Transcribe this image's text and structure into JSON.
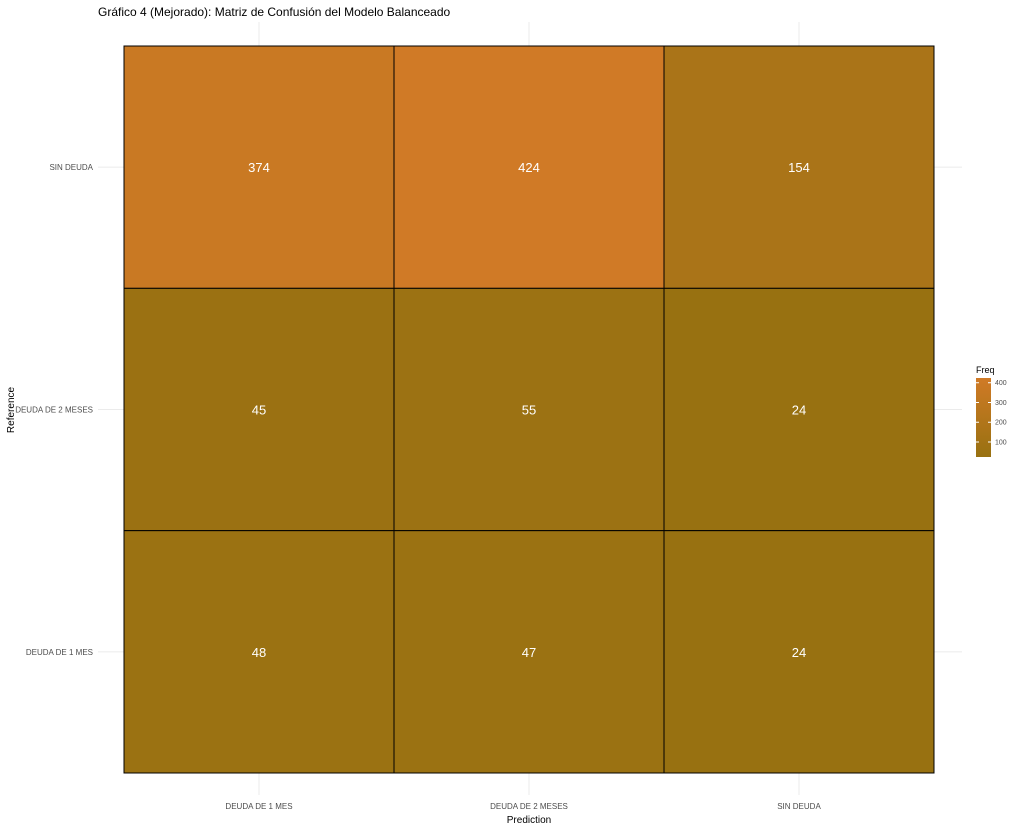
{
  "chart_data": {
    "type": "heatmap",
    "title": "Gráfico 4 (Mejorado): Matriz de Confusión del Modelo Balanceado",
    "xlabel": "Prediction",
    "ylabel": "Reference",
    "x_categories": [
      "DEUDA DE 1 MES",
      "DEUDA DE 2 MESES",
      "SIN DEUDA"
    ],
    "y_categories": [
      "DEUDA DE 1 MES",
      "DEUDA DE 2 MESES",
      "SIN DEUDA"
    ],
    "cells": [
      {
        "prediction": "DEUDA DE 1 MES",
        "reference": "SIN DEUDA",
        "freq": 374
      },
      {
        "prediction": "DEUDA DE 2 MESES",
        "reference": "SIN DEUDA",
        "freq": 424
      },
      {
        "prediction": "SIN DEUDA",
        "reference": "SIN DEUDA",
        "freq": 154
      },
      {
        "prediction": "DEUDA DE 1 MES",
        "reference": "DEUDA DE 2 MESES",
        "freq": 45
      },
      {
        "prediction": "DEUDA DE 2 MESES",
        "reference": "DEUDA DE 2 MESES",
        "freq": 55
      },
      {
        "prediction": "SIN DEUDA",
        "reference": "DEUDA DE 2 MESES",
        "freq": 24
      },
      {
        "prediction": "DEUDA DE 1 MES",
        "reference": "DEUDA DE 1 MES",
        "freq": 48
      },
      {
        "prediction": "DEUDA DE 2 MESES",
        "reference": "DEUDA DE 1 MES",
        "freq": 47
      },
      {
        "prediction": "SIN DEUDA",
        "reference": "DEUDA DE 1 MES",
        "freq": 24
      }
    ],
    "legend": {
      "title": "Freq",
      "ticks": [
        100,
        200,
        300,
        400
      ],
      "placement": "right"
    },
    "color_low": "#987111",
    "color_high": "#d07a26",
    "grid": true
  }
}
